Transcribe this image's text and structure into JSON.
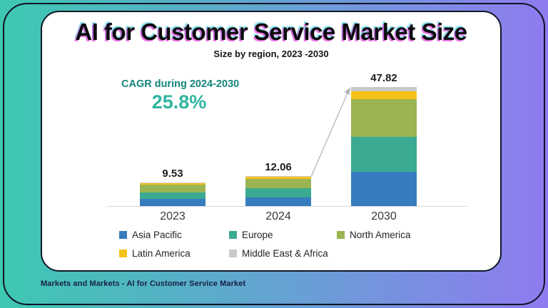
{
  "header": {
    "title": "AI for Customer Service Market Size",
    "subtitle": "Size by region, 2023 -2030"
  },
  "cagr": {
    "label": "CAGR during 2024-2030",
    "value": "25.8%"
  },
  "footer": {
    "source": "Markets and Markets - AI  for Customer Service Market"
  },
  "colors": {
    "background_gradient_left": "#3EC8B1",
    "background_gradient_right": "#8F7BF0",
    "frame_outline": "#0E1424",
    "card_background": "#FFFFFF",
    "cagr_teal": "#31B5A2",
    "cagr_label_teal": "#13857C",
    "axis_line": "#DADADA",
    "trend_arrow": "#B9B9BE"
  },
  "chart_data": {
    "type": "bar",
    "stacked": true,
    "title": "AI for Customer Service Market Size",
    "subtitle": "Size by region, 2023 -2030",
    "categories": [
      "2023",
      "2024",
      "2030"
    ],
    "totals": [
      9.53,
      12.06,
      47.82
    ],
    "series": [
      {
        "name": "Asia Pacific",
        "color": "#377CBE",
        "values": [
          2.73,
          3.45,
          13.66
        ]
      },
      {
        "name": "Europe",
        "color": "#3AAA92",
        "values": [
          2.84,
          3.59,
          14.23
        ]
      },
      {
        "name": "North America",
        "color": "#9AB551",
        "values": [
          3.01,
          3.81,
          15.09
        ]
      },
      {
        "name": "Latin America",
        "color": "#F6C21A",
        "values": [
          0.62,
          0.79,
          3.13
        ]
      },
      {
        "name": "Middle East & Africa",
        "color": "#C9CACC",
        "values": [
          0.33,
          0.42,
          1.71
        ]
      }
    ],
    "ylim": [
      0,
      50
    ],
    "grid": false,
    "legend_position": "bottom",
    "annotations": [
      "trend arrow from 2024 bar top to 2030 bar top"
    ]
  }
}
